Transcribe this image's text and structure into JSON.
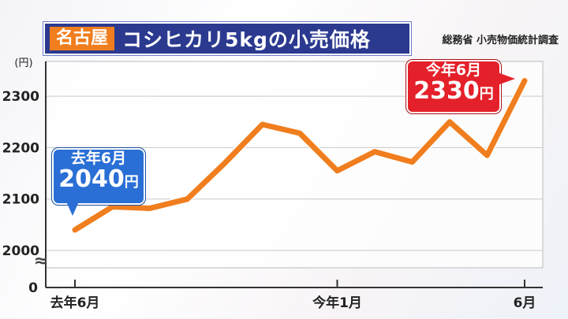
{
  "title": {
    "city": "名古屋",
    "main": "コシヒカリ5kgの小売価格"
  },
  "source": "総務省 小売物価統計調査",
  "callouts": {
    "start": {
      "label": "去年6月",
      "value": "2040",
      "unit": "円"
    },
    "end": {
      "label": "今年6月",
      "value": "2330",
      "unit": "円"
    }
  },
  "colors": {
    "line": "#f07e1e",
    "title_bg": "#2b3a8f",
    "start_badge": "#2a6fd6",
    "end_badge": "#e4202a"
  },
  "chart_data": {
    "type": "line",
    "ylabel": "(円)",
    "yticks": [
      0,
      2000,
      2100,
      2200,
      2300
    ],
    "yaxis_break": true,
    "ylim": [
      1960,
      2380
    ],
    "x_tick_labels": [
      {
        "index": 0,
        "label": "去年6月"
      },
      {
        "index": 7,
        "label": "今年1月"
      },
      {
        "index": 12,
        "label": "6月"
      }
    ],
    "grid": true,
    "series": [
      {
        "values": [
          2040,
          2085,
          2082,
          2100,
          2170,
          2245,
          2228,
          2155,
          2192,
          2172,
          2250,
          2185,
          2330
        ]
      }
    ]
  }
}
